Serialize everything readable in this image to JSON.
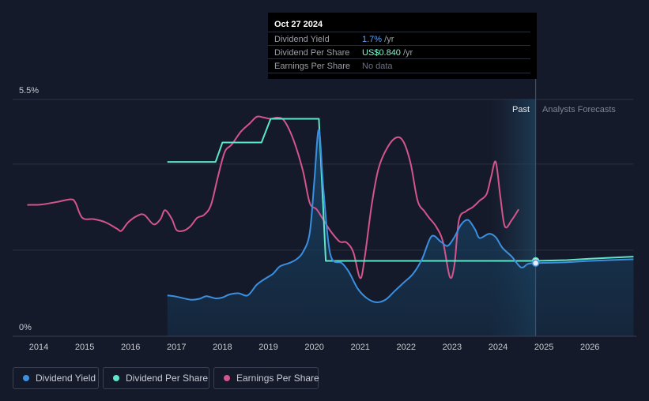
{
  "tooltip": {
    "date": "Oct 27 2024",
    "rows": [
      {
        "label": "Dividend Yield",
        "value": "1.7%",
        "unit": " /yr"
      },
      {
        "label": "Dividend Per Share",
        "value": "US$0.840",
        "unit": " /yr"
      },
      {
        "label": "Earnings Per Share",
        "value": "No data",
        "unit": ""
      }
    ]
  },
  "legend": [
    {
      "label": "Dividend Yield",
      "color": "#3b8fe0"
    },
    {
      "label": "Dividend Per Share",
      "color": "#5ee6c8"
    },
    {
      "label": "Earnings Per Share",
      "color": "#d4558c"
    }
  ],
  "chart_data": {
    "type": "line",
    "y_top_label": "5.5%",
    "y_bottom_label": "0%",
    "x_ticks": [
      "2014",
      "2015",
      "2016",
      "2017",
      "2018",
      "2019",
      "2020",
      "2021",
      "2022",
      "2023",
      "2024",
      "2025",
      "2026"
    ],
    "region_labels": {
      "past": "Past",
      "forecast": "Analysts Forecasts"
    },
    "x_range": [
      2013.75,
      2026.95
    ],
    "y_range_percent": [
      0,
      5.5
    ],
    "past_forecast_split": 2024.82,
    "series": [
      {
        "name": "Dividend Yield",
        "color": "#3b8fe0",
        "unit": "%",
        "points": [
          [
            2016.8,
            0.95
          ],
          [
            2017.0,
            0.92
          ],
          [
            2017.3,
            0.85
          ],
          [
            2017.5,
            0.87
          ],
          [
            2017.65,
            0.93
          ],
          [
            2017.85,
            0.88
          ],
          [
            2018.0,
            0.9
          ],
          [
            2018.15,
            0.97
          ],
          [
            2018.35,
            1.0
          ],
          [
            2018.55,
            0.95
          ],
          [
            2018.75,
            1.2
          ],
          [
            2018.95,
            1.35
          ],
          [
            2019.1,
            1.45
          ],
          [
            2019.25,
            1.62
          ],
          [
            2019.45,
            1.7
          ],
          [
            2019.6,
            1.78
          ],
          [
            2019.75,
            1.95
          ],
          [
            2019.9,
            2.4
          ],
          [
            2020.0,
            3.6
          ],
          [
            2020.1,
            4.8
          ],
          [
            2020.2,
            3.4
          ],
          [
            2020.35,
            1.9
          ],
          [
            2020.6,
            1.7
          ],
          [
            2020.75,
            1.5
          ],
          [
            2020.95,
            1.1
          ],
          [
            2021.15,
            0.88
          ],
          [
            2021.35,
            0.79
          ],
          [
            2021.55,
            0.85
          ],
          [
            2021.75,
            1.05
          ],
          [
            2021.95,
            1.25
          ],
          [
            2022.15,
            1.45
          ],
          [
            2022.35,
            1.8
          ],
          [
            2022.55,
            2.32
          ],
          [
            2022.75,
            2.2
          ],
          [
            2022.9,
            2.1
          ],
          [
            2023.05,
            2.3
          ],
          [
            2023.2,
            2.6
          ],
          [
            2023.35,
            2.7
          ],
          [
            2023.5,
            2.48
          ],
          [
            2023.6,
            2.28
          ],
          [
            2023.8,
            2.38
          ],
          [
            2023.95,
            2.3
          ],
          [
            2024.1,
            2.05
          ],
          [
            2024.3,
            1.85
          ],
          [
            2024.5,
            1.6
          ],
          [
            2024.65,
            1.68
          ],
          [
            2024.82,
            1.7
          ],
          [
            2025.5,
            1.72
          ],
          [
            2026.0,
            1.75
          ],
          [
            2026.95,
            1.79
          ]
        ]
      },
      {
        "name": "Dividend Per Share",
        "color": "#5ee6c8",
        "unit": "index",
        "points": [
          [
            2016.8,
            4.05
          ],
          [
            2017.85,
            4.05
          ],
          [
            2018.0,
            4.5
          ],
          [
            2018.85,
            4.5
          ],
          [
            2019.05,
            5.05
          ],
          [
            2020.1,
            5.05
          ],
          [
            2020.25,
            1.75
          ],
          [
            2024.82,
            1.75
          ],
          [
            2025.5,
            1.77
          ],
          [
            2026.0,
            1.8
          ],
          [
            2026.95,
            1.85
          ]
        ]
      },
      {
        "name": "Earnings Per Share",
        "color": "#d4558c",
        "unit": "index",
        "points": [
          [
            2013.75,
            3.05
          ],
          [
            2014.05,
            3.06
          ],
          [
            2014.4,
            3.12
          ],
          [
            2014.7,
            3.18
          ],
          [
            2014.8,
            3.1
          ],
          [
            2014.95,
            2.75
          ],
          [
            2015.2,
            2.72
          ],
          [
            2015.45,
            2.65
          ],
          [
            2015.7,
            2.5
          ],
          [
            2015.8,
            2.45
          ],
          [
            2015.95,
            2.65
          ],
          [
            2016.15,
            2.8
          ],
          [
            2016.3,
            2.82
          ],
          [
            2016.5,
            2.6
          ],
          [
            2016.65,
            2.72
          ],
          [
            2016.75,
            2.93
          ],
          [
            2016.9,
            2.72
          ],
          [
            2017.0,
            2.47
          ],
          [
            2017.15,
            2.45
          ],
          [
            2017.3,
            2.55
          ],
          [
            2017.45,
            2.75
          ],
          [
            2017.6,
            2.82
          ],
          [
            2017.75,
            3.05
          ],
          [
            2017.9,
            3.7
          ],
          [
            2018.05,
            4.28
          ],
          [
            2018.2,
            4.45
          ],
          [
            2018.4,
            4.75
          ],
          [
            2018.6,
            4.95
          ],
          [
            2018.75,
            5.1
          ],
          [
            2018.9,
            5.08
          ],
          [
            2019.05,
            5.05
          ],
          [
            2019.2,
            5.08
          ],
          [
            2019.35,
            5.0
          ],
          [
            2019.55,
            4.55
          ],
          [
            2019.75,
            3.85
          ],
          [
            2019.9,
            3.1
          ],
          [
            2020.05,
            2.95
          ],
          [
            2020.2,
            2.7
          ],
          [
            2020.35,
            2.45
          ],
          [
            2020.55,
            2.2
          ],
          [
            2020.7,
            2.18
          ],
          [
            2020.85,
            1.95
          ],
          [
            2021.0,
            1.35
          ],
          [
            2021.1,
            1.85
          ],
          [
            2021.25,
            3.05
          ],
          [
            2021.4,
            3.9
          ],
          [
            2021.6,
            4.4
          ],
          [
            2021.8,
            4.62
          ],
          [
            2021.95,
            4.5
          ],
          [
            2022.1,
            4.0
          ],
          [
            2022.25,
            3.15
          ],
          [
            2022.4,
            2.9
          ],
          [
            2022.5,
            2.75
          ],
          [
            2022.65,
            2.55
          ],
          [
            2022.8,
            2.2
          ],
          [
            2022.95,
            1.38
          ],
          [
            2023.05,
            1.65
          ],
          [
            2023.15,
            2.7
          ],
          [
            2023.3,
            2.9
          ],
          [
            2023.45,
            3.0
          ],
          [
            2023.6,
            3.15
          ],
          [
            2023.75,
            3.3
          ],
          [
            2023.85,
            3.7
          ],
          [
            2023.95,
            4.05
          ],
          [
            2024.05,
            3.25
          ],
          [
            2024.15,
            2.55
          ],
          [
            2024.3,
            2.7
          ],
          [
            2024.45,
            2.95
          ]
        ]
      }
    ]
  }
}
